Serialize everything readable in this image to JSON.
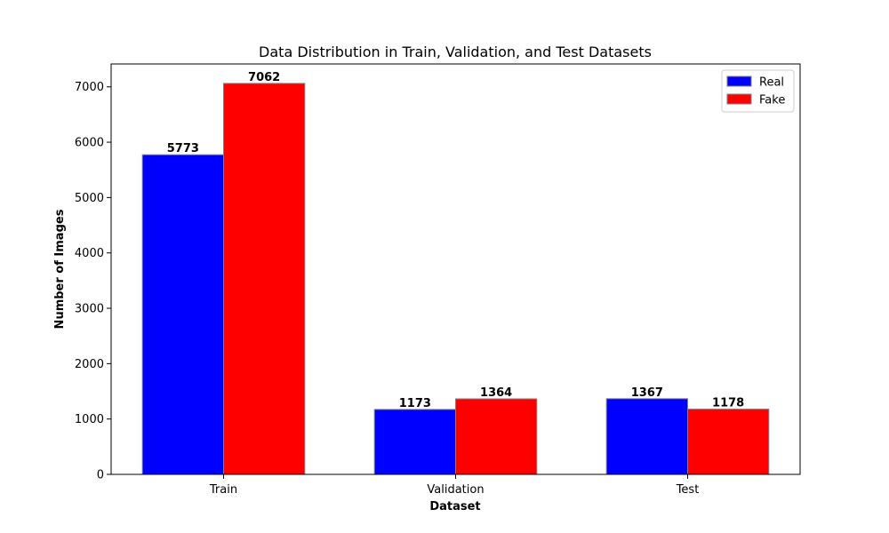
{
  "chart_data": {
    "type": "bar",
    "title": "Data Distribution in Train, Validation, and Test Datasets",
    "xlabel": "Dataset",
    "ylabel": "Number of Images",
    "categories": [
      "Train",
      "Validation",
      "Test"
    ],
    "series": [
      {
        "name": "Real",
        "color": "#0000ff",
        "values": [
          5773,
          1173,
          1367
        ]
      },
      {
        "name": "Fake",
        "color": "#ff0000",
        "values": [
          7062,
          1364,
          1178
        ]
      }
    ],
    "ylim": [
      0,
      7413
    ],
    "yticks": [
      0,
      1000,
      2000,
      3000,
      4000,
      5000,
      6000,
      7000
    ],
    "grid": false,
    "legend_position": "top-right",
    "bar_edge_color": "#808080"
  }
}
